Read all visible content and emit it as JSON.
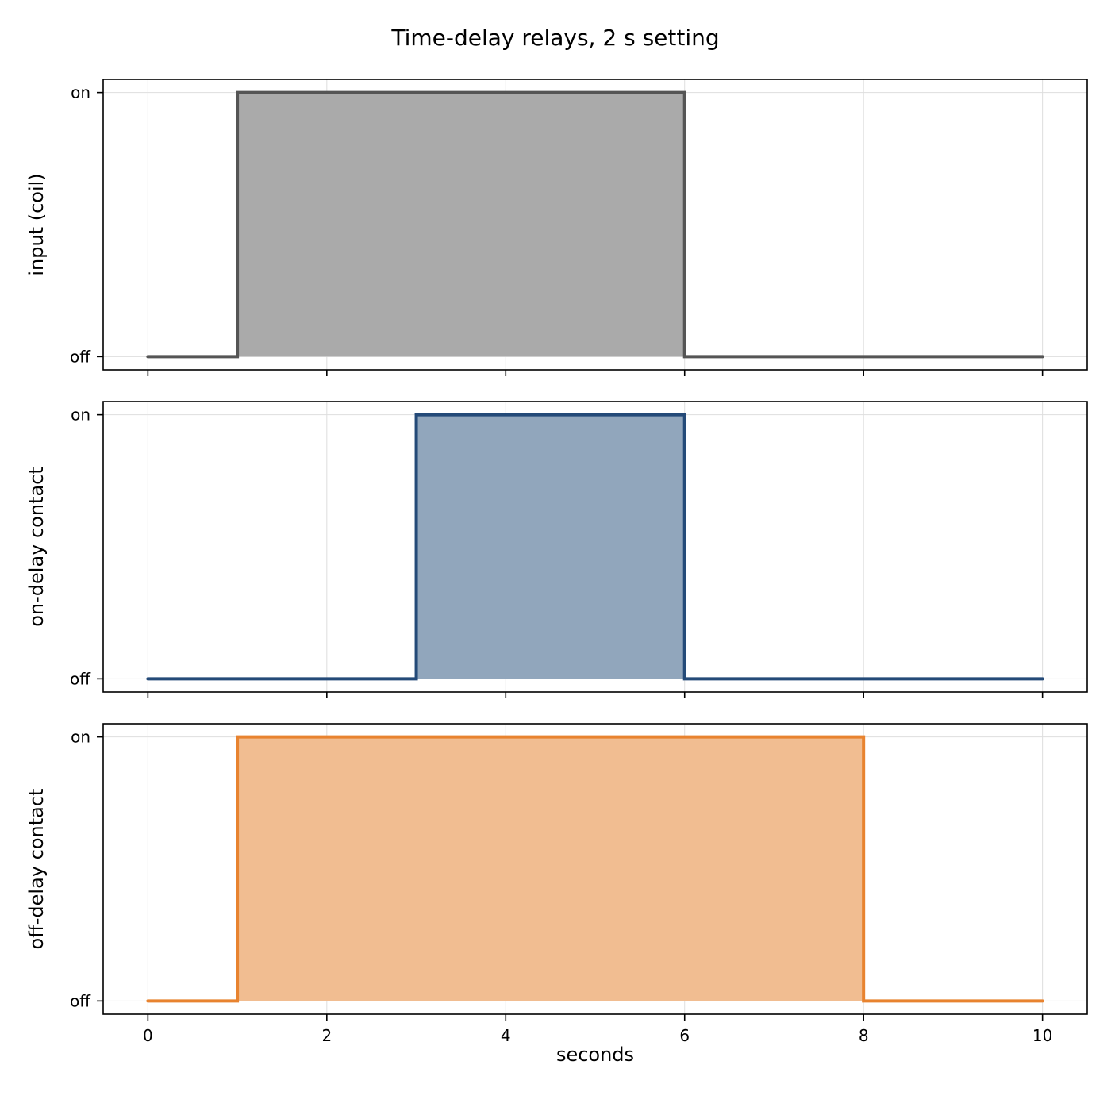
{
  "chart_data": {
    "type": "line",
    "title": "Time-delay relays, 2 s setting",
    "xlabel": "seconds",
    "xlim": [
      -0.5,
      10.5
    ],
    "xticks": [
      0,
      2,
      4,
      6,
      8,
      10
    ],
    "ylim": [
      -0.05,
      1.05
    ],
    "yticks": [
      0,
      1
    ],
    "ytick_labels": [
      "off",
      "on"
    ],
    "grid": true,
    "step": true,
    "filled": true,
    "panels": [
      {
        "ylabel": "input (coil)",
        "color": "#555555",
        "fill_color": "#aaaaaa",
        "x": [
          0,
          1,
          1,
          6,
          6,
          10
        ],
        "y": [
          0,
          0,
          1,
          1,
          0,
          0
        ]
      },
      {
        "ylabel": "on-delay contact",
        "color": "#244a78",
        "fill_color": "#91a6bc",
        "x": [
          0,
          3,
          3,
          6,
          6,
          10
        ],
        "y": [
          0,
          0,
          1,
          1,
          0,
          0
        ]
      },
      {
        "ylabel": "off-delay contact",
        "color": "#e8832f",
        "fill_color": "#f1bd91",
        "x": [
          0,
          1,
          1,
          8,
          8,
          10
        ],
        "y": [
          0,
          0,
          1,
          1,
          0,
          0
        ]
      }
    ]
  }
}
